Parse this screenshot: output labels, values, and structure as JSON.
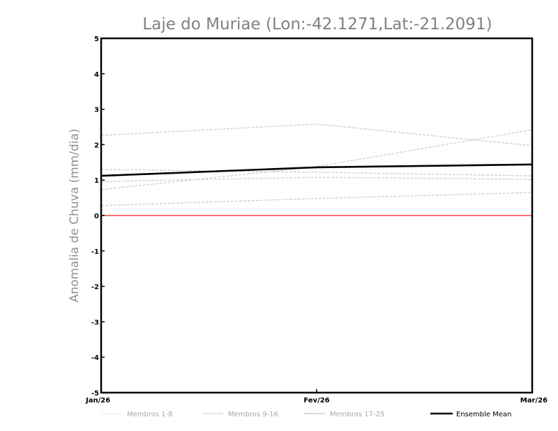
{
  "chart_data": {
    "type": "line",
    "title": "Laje do Muriae (Lon:-42.1271,Lat:-21.2091)",
    "xlabel": "",
    "ylabel": "Anomalia de Chuva (mm/dia)",
    "categories": [
      "Jan/26",
      "Fev/26",
      "Mar/26"
    ],
    "ylim": [
      -5,
      5
    ],
    "yticks": [
      "5",
      "4",
      "3",
      "2",
      "1",
      "0",
      "-1",
      "-2",
      "-3",
      "-4",
      "-5"
    ],
    "ytick_values": [
      5,
      4,
      3,
      2,
      1,
      0,
      -1,
      -2,
      -3,
      -4,
      -5
    ],
    "grid": false,
    "reference_line": {
      "value": 0,
      "color": "#ff4040"
    },
    "members": [
      {
        "values": [
          2.26,
          2.58,
          1.97
        ]
      },
      {
        "values": [
          1.3,
          1.22,
          1.12
        ]
      },
      {
        "values": [
          0.96,
          1.08,
          1.02
        ]
      },
      {
        "values": [
          0.73,
          1.38,
          2.42
        ]
      },
      {
        "values": [
          0.28,
          0.48,
          0.65
        ]
      }
    ],
    "series": [
      {
        "name": "Ensemble Mean",
        "values": [
          1.12,
          1.36,
          1.44
        ],
        "color": "#000000"
      }
    ],
    "legend": {
      "placement": "bottom",
      "entries": [
        {
          "label": "Membros 1-8",
          "color": "#d8d8d8",
          "style": "dashed"
        },
        {
          "label": "Membros 9-16",
          "color": "#b8b8b8",
          "style": "dashed"
        },
        {
          "label": "Membros 17-25",
          "color": "#909090",
          "style": "dashed"
        },
        {
          "label": "Ensemble Mean",
          "color": "#000000",
          "style": "solid"
        }
      ]
    },
    "member_color": "#cccccc"
  }
}
